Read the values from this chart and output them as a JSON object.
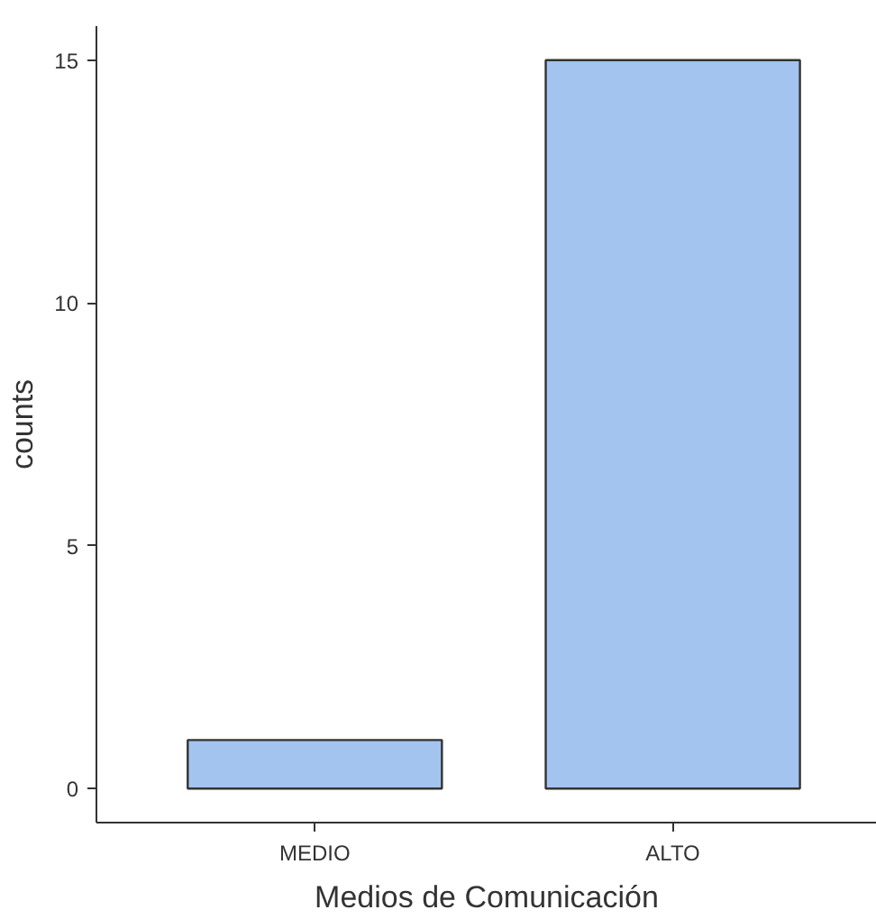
{
  "chart_data": {
    "type": "bar",
    "xlabel": "Medios de Comunicación",
    "ylabel": "counts",
    "categories": [
      "MEDIO",
      "ALTO"
    ],
    "values": [
      1,
      15
    ],
    "color": "#a4c4f0",
    "ylim": [
      -0.7,
      15.7
    ],
    "yticks": [
      0,
      5,
      10,
      15
    ],
    "grid": false
  }
}
